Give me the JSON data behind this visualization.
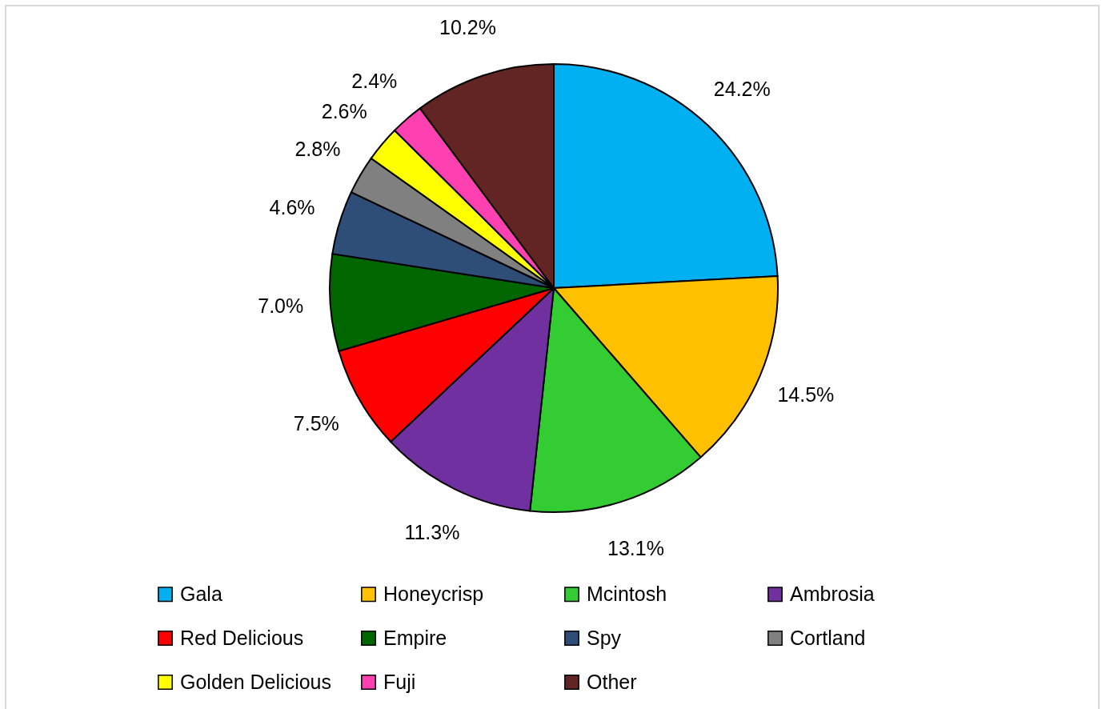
{
  "chart_data": {
    "type": "pie",
    "categories": [
      "Gala",
      "Honeycrisp",
      "Mcintosh",
      "Ambrosia",
      "Red Delicious",
      "Empire",
      "Spy",
      "Cortland",
      "Golden Delicious",
      "Fuji",
      "Other"
    ],
    "values": [
      24.2,
      14.5,
      13.1,
      11.3,
      7.5,
      7.0,
      4.6,
      2.8,
      2.6,
      2.4,
      10.2
    ],
    "value_labels": [
      "24.2%",
      "14.5%",
      "13.1%",
      "11.3%",
      "7.5%",
      "7.0%",
      "4.6%",
      "2.8%",
      "2.6%",
      "2.4%",
      "10.2%"
    ],
    "colors": [
      "#00b0f0",
      "#ffc000",
      "#33cc33",
      "#7030a0",
      "#ff0000",
      "#006600",
      "#2e4d77",
      "#808080",
      "#ffff00",
      "#ff40b0",
      "#632523"
    ],
    "legend": "bottom"
  }
}
